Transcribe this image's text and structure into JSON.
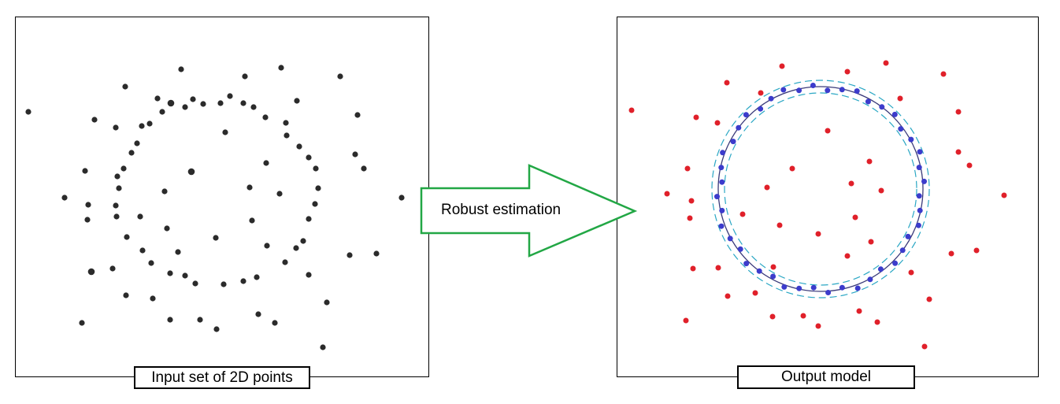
{
  "input_caption": "Input set of 2D points",
  "output_caption": "Output model",
  "arrow_label": "Robust estimation",
  "colors": {
    "input_point": "#2b2b2b",
    "outlier": "#e0202a",
    "inlier": "#3c3ccc",
    "model_circle": "#3a3a7a",
    "band": "#2aa7c4",
    "arrow": "#22a745"
  }
}
